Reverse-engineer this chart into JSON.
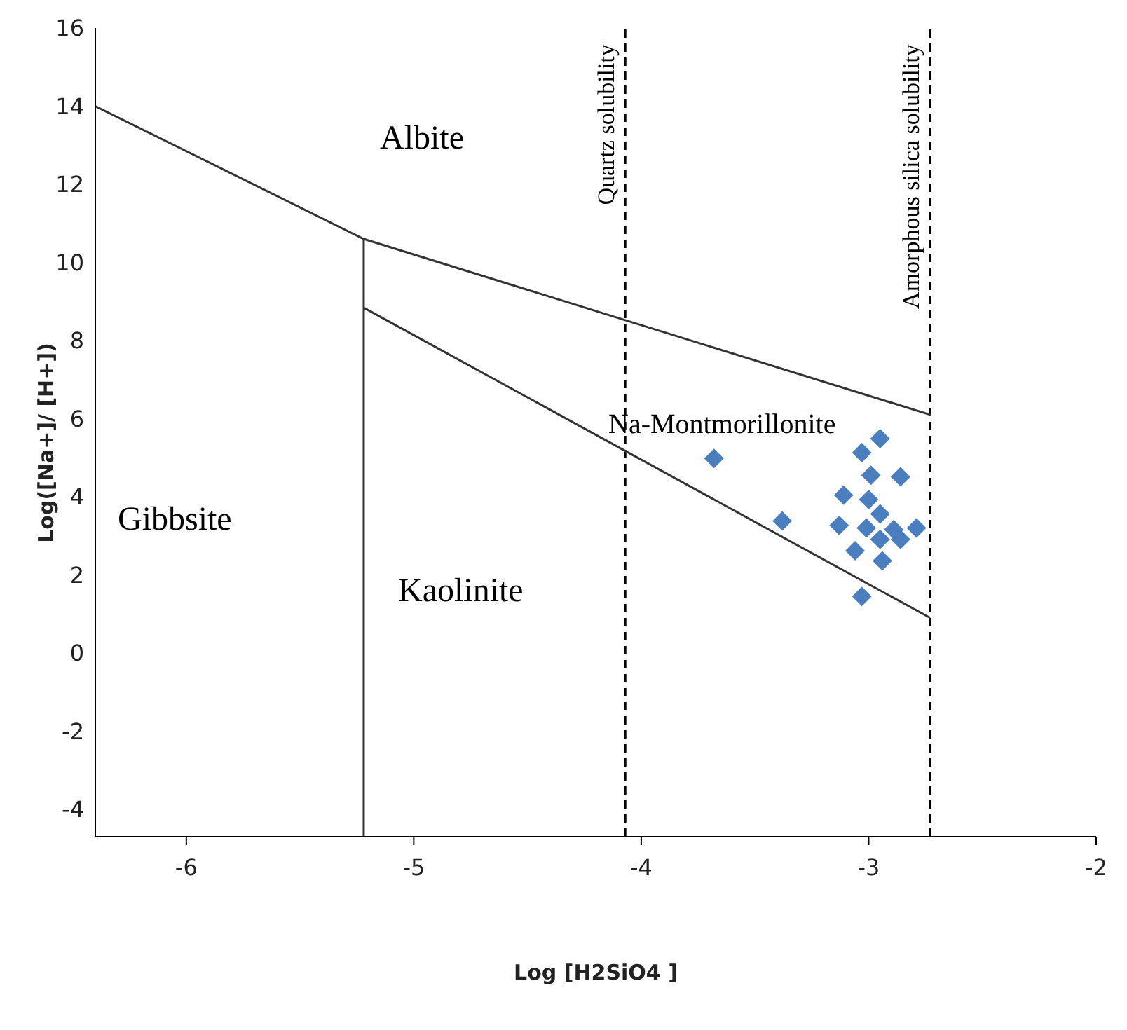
{
  "chart_data": {
    "type": "scatter",
    "xlabel": "Log [H2SiO4 ]",
    "ylabel": "Log([Na+]/ [H+])",
    "xlim": [
      -6.4,
      -2
    ],
    "xticks": [
      -6,
      -5,
      -4,
      -3,
      -2
    ],
    "ylim": [
      -4.7,
      16
    ],
    "yticks": [
      -4,
      -2,
      0,
      2,
      4,
      6,
      8,
      10,
      12,
      14,
      16
    ],
    "series": [
      {
        "type": "scatter",
        "marker": "diamond",
        "color": "#4a7ebf",
        "x": [
          -3.68,
          -3.38,
          -2.95,
          -3.03,
          -2.99,
          -2.86,
          -3.11,
          -3.0,
          -2.95,
          -3.13,
          -3.01,
          -2.89,
          -2.79,
          -2.95,
          -2.86,
          -3.06,
          -2.94,
          -3.03
        ],
        "values": [
          4.98,
          3.38,
          5.49,
          5.13,
          4.55,
          4.51,
          4.04,
          3.93,
          3.56,
          3.27,
          3.2,
          3.16,
          3.2,
          2.91,
          2.91,
          2.62,
          2.36,
          1.45
        ]
      },
      {
        "type": "line",
        "marker": "none",
        "line_style": "solid",
        "color": "#333333",
        "x": [
          -6.4,
          -5.22,
          -2.73,
          -5.22,
          -5.22,
          -5.22,
          -2.73
        ],
        "values": [
          14.0,
          10.6,
          6.1,
          10.6,
          -4.7,
          8.84,
          0.9
        ]
      }
    ],
    "ref_lines": [
      {
        "axis": "x",
        "value": -4.07,
        "label": "Quartz solubility",
        "line_style": "dashed",
        "color": "#000000"
      },
      {
        "axis": "x",
        "value": -2.73,
        "label": "Amorphous silica solubility",
        "line_style": "dashed",
        "color": "#000000"
      }
    ],
    "annotations": [
      "Albite",
      "Gibbsite",
      "Kaolinite",
      "Na-Montmorillonite"
    ]
  }
}
